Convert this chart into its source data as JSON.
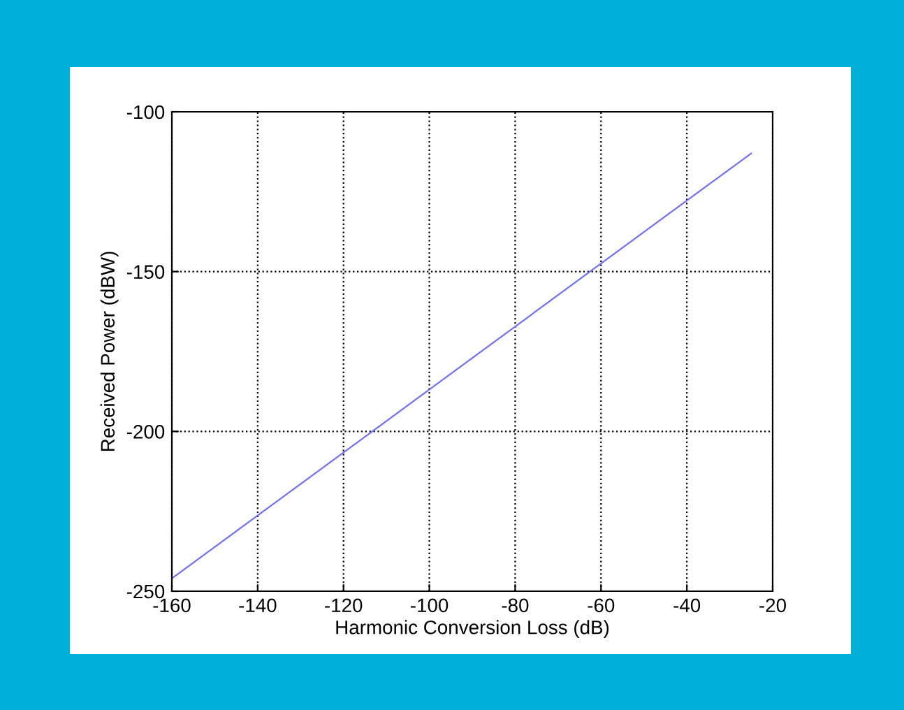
{
  "chart_data": {
    "type": "line",
    "xlabel": "Harmonic Conversion Loss (dB)",
    "ylabel": "Received Power (dBW)",
    "series": [
      {
        "color": "#7070ff",
        "x": [
          -160,
          -25
        ],
        "values": [
          -246,
          -113
        ]
      }
    ],
    "xlim": [
      -160,
      -20
    ],
    "ylim": [
      -250,
      -100
    ],
    "xticks": [
      -160,
      -140,
      -120,
      -100,
      -80,
      -60,
      -40,
      -20
    ],
    "yticks": [
      -250,
      -200,
      -150,
      -100
    ],
    "grid": true,
    "line_style": "solid"
  }
}
